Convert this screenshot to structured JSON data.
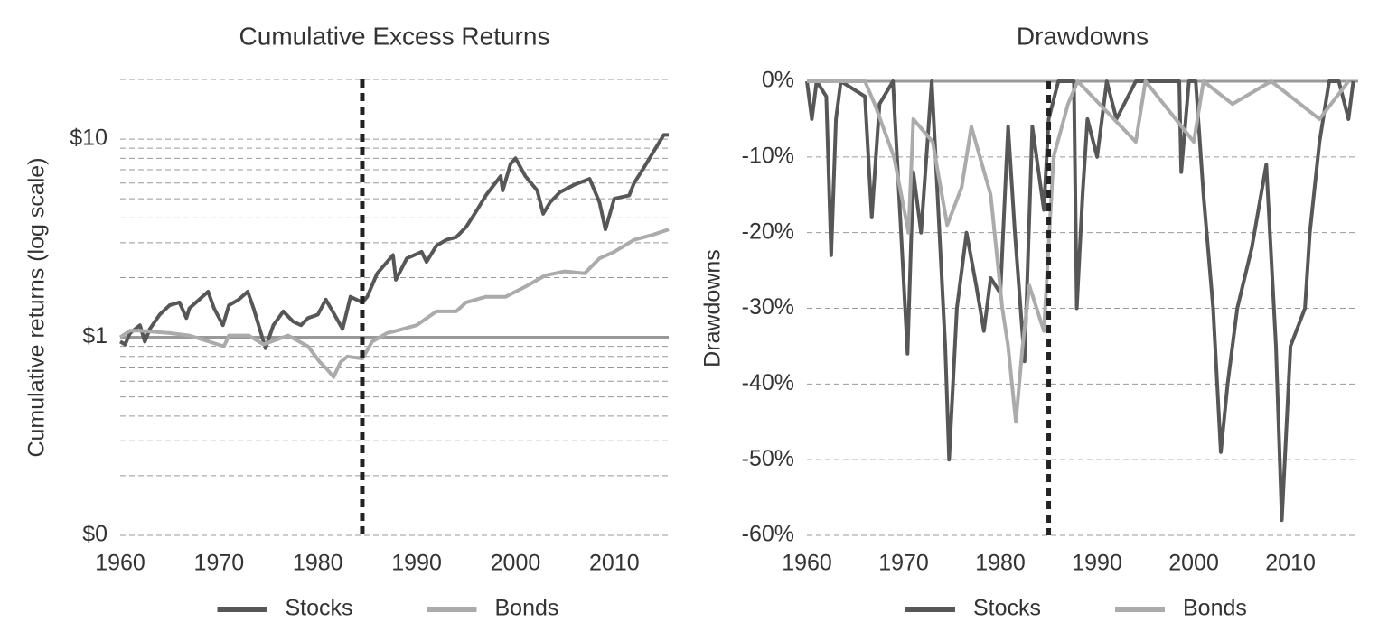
{
  "chart_data": [
    {
      "type": "line",
      "title": "Cumulative Excess Returns",
      "y_label": "Cumulative returns (log scale)",
      "log_scale": true,
      "xlim": [
        1960,
        2015.5
      ],
      "xticks": [
        1960,
        1970,
        1980,
        1990,
        2000,
        2010
      ],
      "ylim": [
        0.1,
        20
      ],
      "yticks": [
        {
          "value": 0.1,
          "label": "$0"
        },
        {
          "value": 1,
          "label": "$1"
        },
        {
          "value": 10,
          "label": "$10"
        }
      ],
      "minor_yticks": [
        0.2,
        0.3,
        0.4,
        0.5,
        0.6,
        0.7,
        0.8,
        0.9,
        2,
        3,
        4,
        5,
        6,
        7,
        8,
        9,
        20
      ],
      "grid": true,
      "hline": 1,
      "vline": 1984.5,
      "series": [
        {
          "name": "Stocks",
          "color": "#575757",
          "x": [
            1960,
            1960.5,
            1961,
            1962,
            1962.5,
            1963,
            1964,
            1965,
            1966,
            1966.7,
            1967,
            1968,
            1968.9,
            1969.5,
            1970.4,
            1971,
            1972,
            1972.9,
            1973.5,
            1974.7,
            1975.5,
            1976.5,
            1977.5,
            1978.3,
            1979,
            1980,
            1980.8,
            1981.5,
            1982.5,
            1983.3,
            1984.5,
            1985,
            1986,
            1987.6,
            1987.9,
            1989,
            1990.5,
            1991,
            1992,
            1993,
            1994,
            1995,
            1996,
            1997,
            1998.5,
            1998.7,
            1999.5,
            2000,
            2001,
            2002.2,
            2002.8,
            2003.5,
            2004.5,
            2006,
            2007.5,
            2008.5,
            2009.1,
            2010,
            2011.5,
            2012,
            2013,
            2014,
            2015,
            2015.5
          ],
          "values": [
            0.95,
            0.92,
            1.05,
            1.15,
            0.95,
            1.1,
            1.3,
            1.45,
            1.5,
            1.25,
            1.4,
            1.55,
            1.7,
            1.4,
            1.15,
            1.45,
            1.55,
            1.7,
            1.4,
            0.88,
            1.15,
            1.35,
            1.2,
            1.15,
            1.25,
            1.3,
            1.55,
            1.35,
            1.1,
            1.6,
            1.5,
            1.6,
            2.1,
            2.6,
            1.95,
            2.5,
            2.7,
            2.4,
            2.9,
            3.1,
            3.2,
            3.6,
            4.3,
            5.2,
            6.5,
            5.5,
            7.5,
            8.0,
            6.5,
            5.5,
            4.2,
            4.8,
            5.4,
            5.9,
            6.3,
            4.8,
            3.5,
            5.0,
            5.2,
            6.0,
            7.2,
            8.7,
            10.5,
            10.5
          ]
        },
        {
          "name": "Bonds",
          "color": "#ababab",
          "x": [
            1960,
            1961,
            1962,
            1965,
            1967,
            1969,
            1970.5,
            1971,
            1973,
            1974.5,
            1976,
            1977,
            1979,
            1980.2,
            1980.8,
            1981.6,
            1982.3,
            1983,
            1984.5,
            1985.5,
            1987,
            1988,
            1990,
            1992,
            1994,
            1995,
            1997,
            1999,
            2001,
            2003,
            2005,
            2007,
            2008.5,
            2010,
            2012,
            2014,
            2015.5
          ],
          "values": [
            1.0,
            1.08,
            1.08,
            1.05,
            1.02,
            0.95,
            0.9,
            1.02,
            1.02,
            0.92,
            0.98,
            1.02,
            0.9,
            0.75,
            0.7,
            0.63,
            0.75,
            0.8,
            0.78,
            0.95,
            1.05,
            1.08,
            1.15,
            1.35,
            1.35,
            1.5,
            1.6,
            1.6,
            1.8,
            2.05,
            2.15,
            2.1,
            2.5,
            2.7,
            3.1,
            3.3,
            3.5
          ]
        }
      ]
    },
    {
      "type": "line",
      "title": "Drawdowns",
      "y_label": "Drawdowns",
      "log_scale": false,
      "xlim": [
        1960,
        2017
      ],
      "xticks": [
        1960,
        1970,
        1980,
        1990,
        2000,
        2010
      ],
      "ylim": [
        -60,
        0
      ],
      "yticks": [
        {
          "value": -60,
          "label": "-60%"
        },
        {
          "value": -50,
          "label": "-50%"
        },
        {
          "value": -40,
          "label": "-40%"
        },
        {
          "value": -30,
          "label": "-30%"
        },
        {
          "value": -20,
          "label": "-20%"
        },
        {
          "value": -10,
          "label": "-10%"
        },
        {
          "value": 0,
          "label": "0%"
        }
      ],
      "grid": true,
      "hline": 0,
      "vline": 1985,
      "series": [
        {
          "name": "Stocks",
          "color": "#575757",
          "x": [
            1960,
            1960.5,
            1961,
            1962,
            1962.5,
            1963,
            1963.5,
            1966,
            1966.7,
            1967.5,
            1968.9,
            1970.4,
            1971,
            1971.8,
            1972.9,
            1973.5,
            1974.3,
            1974.7,
            1975.5,
            1976.5,
            1977.5,
            1978.3,
            1979,
            1980,
            1980.8,
            1981.5,
            1982.5,
            1983.3,
            1984.5,
            1985,
            1986,
            1987.6,
            1987.9,
            1988.5,
            1989,
            1990,
            1991,
            1992,
            1994,
            1998.5,
            1998.7,
            1999.5,
            2000.2,
            2001,
            2002,
            2002.8,
            2003.5,
            2004.5,
            2006,
            2007.5,
            2008.5,
            2009.1,
            2010,
            2011.5,
            2012,
            2013,
            2014,
            2015,
            2016,
            2016.5
          ],
          "values": [
            0,
            -5,
            0,
            -2,
            -23,
            -5,
            0,
            -2,
            -18,
            -3,
            0,
            -36,
            -12,
            -20,
            0,
            -15,
            -35,
            -50,
            -30,
            -20,
            -27,
            -33,
            -26,
            -28,
            -6,
            -20,
            -37,
            -6,
            -17,
            -5,
            0,
            0,
            -30,
            -15,
            -5,
            -10,
            0,
            -5,
            0,
            0,
            -12,
            0,
            0,
            -15,
            -30,
            -49,
            -40,
            -30,
            -22,
            -11,
            -35,
            -58,
            -35,
            -30,
            -20,
            -8,
            0,
            0,
            -5,
            0
          ]
        },
        {
          "name": "Bonds",
          "color": "#ababab",
          "x": [
            1960,
            1966,
            1967,
            1969,
            1970.5,
            1971,
            1973,
            1974.5,
            1976,
            1977,
            1979,
            1980.2,
            1980.8,
            1981.6,
            1982.3,
            1983,
            1984.5,
            1985.5,
            1987,
            1988,
            1994,
            1995,
            2000,
            2001,
            2004,
            2008,
            2013,
            2016
          ],
          "values": [
            0,
            0,
            -3,
            -10,
            -20,
            -5,
            -8,
            -19,
            -14,
            -6,
            -15,
            -30,
            -35,
            -45,
            -35,
            -27,
            -33,
            -10,
            -3,
            0,
            -8,
            0,
            -8,
            0,
            -3,
            0,
            -5,
            0
          ]
        }
      ]
    }
  ]
}
